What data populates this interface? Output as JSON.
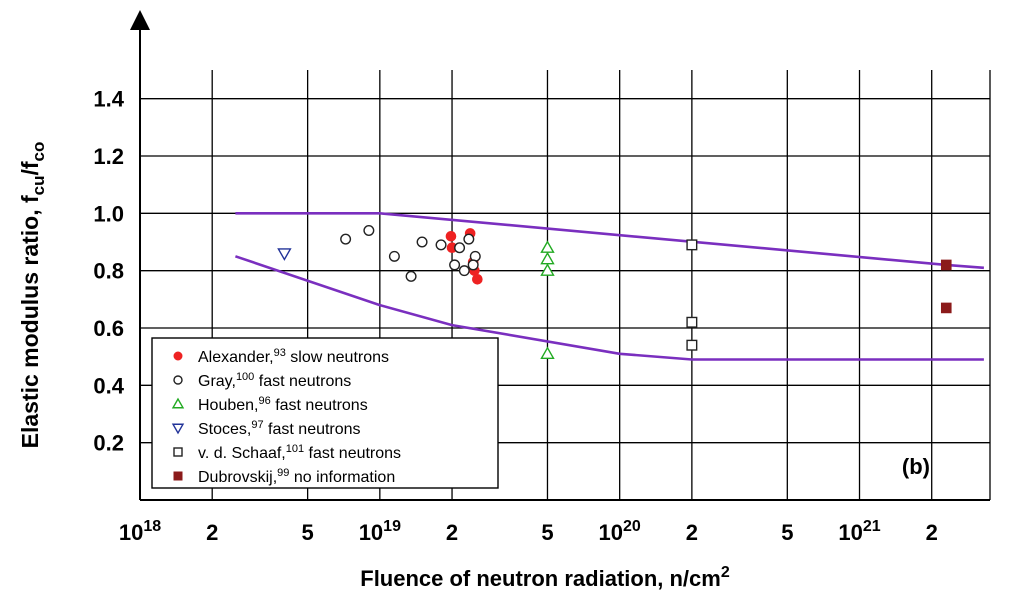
{
  "chart_data": {
    "type": "scatter",
    "panel_label": "(b)",
    "ylabel": {
      "main": "Elastic modulus ratio, f",
      "sub1": "cu",
      "mid": "/f",
      "sub2": "co"
    },
    "xlabel": {
      "main": "Fluence of neutron radiation, n/cm",
      "sup": "2"
    },
    "x_scale": "log",
    "xlim": [
      1e+18,
      3.5e+21
    ],
    "ylim": [
      0.0,
      1.5
    ],
    "grid": true,
    "legend_position": "bottom-left",
    "y_ticks": [
      {
        "value": 0.2,
        "label": "0.2"
      },
      {
        "value": 0.4,
        "label": "0.4"
      },
      {
        "value": 0.6,
        "label": "0.6"
      },
      {
        "value": 0.8,
        "label": "0.8"
      },
      {
        "value": 1.0,
        "label": "1.0"
      },
      {
        "value": 1.2,
        "label": "1.2"
      },
      {
        "value": 1.4,
        "label": "1.4"
      }
    ],
    "x_grid": [
      2e+18,
      5e+18,
      1e+19,
      2e+19,
      5e+19,
      1e+20,
      2e+20,
      5e+20,
      1e+21,
      2e+21
    ],
    "x_ticks": [
      {
        "value": 1e+18,
        "base": "10",
        "exp": "18"
      },
      {
        "value": 2e+18,
        "base": "2",
        "exp": ""
      },
      {
        "value": 5e+18,
        "base": "5",
        "exp": ""
      },
      {
        "value": 1e+19,
        "base": "10",
        "exp": "19"
      },
      {
        "value": 2e+19,
        "base": "2",
        "exp": ""
      },
      {
        "value": 5e+19,
        "base": "5",
        "exp": ""
      },
      {
        "value": 1e+20,
        "base": "10",
        "exp": "20"
      },
      {
        "value": 2e+20,
        "base": "2",
        "exp": ""
      },
      {
        "value": 5e+20,
        "base": "5",
        "exp": ""
      },
      {
        "value": 1e+21,
        "base": "10",
        "exp": "21"
      },
      {
        "value": 2e+21,
        "base": "2",
        "exp": ""
      }
    ],
    "bounds": [
      {
        "color": "#7a2fbf",
        "points": [
          [
            2.5e+18,
            1.0
          ],
          [
            1e+19,
            1.0
          ],
          [
            2.3e+21,
            0.82
          ],
          [
            3.3e+21,
            0.81
          ]
        ]
      },
      {
        "color": "#7a2fbf",
        "points": [
          [
            2.5e+18,
            0.85
          ],
          [
            1e+19,
            0.68
          ],
          [
            2e+19,
            0.61
          ],
          [
            1e+20,
            0.51
          ],
          [
            2e+20,
            0.49
          ],
          [
            3.3e+21,
            0.49
          ]
        ]
      }
    ],
    "series": [
      {
        "name": "Alexander,",
        "ref": "93",
        "suffix": " slow neutrons",
        "marker": "filled-circle",
        "color": "#ee2222",
        "points": [
          [
            1.98e+19,
            0.92
          ],
          [
            2e+19,
            0.88
          ],
          [
            2.38e+19,
            0.93
          ],
          [
            2.45e+19,
            0.83
          ],
          [
            2.48e+19,
            0.8
          ],
          [
            2.55e+19,
            0.77
          ]
        ]
      },
      {
        "name": "Gray,",
        "ref": "100",
        "suffix": " fast neutrons",
        "marker": "open-circle",
        "color": "#222222",
        "points": [
          [
            7.2e+18,
            0.91
          ],
          [
            9e+18,
            0.94
          ],
          [
            1.15e+19,
            0.85
          ],
          [
            1.35e+19,
            0.78
          ],
          [
            1.5e+19,
            0.9
          ],
          [
            1.8e+19,
            0.89
          ],
          [
            2.05e+19,
            0.82
          ],
          [
            2.15e+19,
            0.88
          ],
          [
            2.25e+19,
            0.8
          ],
          [
            2.35e+19,
            0.91
          ],
          [
            2.5e+19,
            0.85
          ],
          [
            2.45e+19,
            0.82
          ]
        ]
      },
      {
        "name": "Houben,",
        "ref": "96",
        "suffix": " fast neutrons",
        "marker": "open-triangle-up",
        "color": "#22aa22",
        "points": [
          [
            5e+19,
            0.88
          ],
          [
            5e+19,
            0.84
          ],
          [
            5e+19,
            0.8
          ],
          [
            5e+19,
            0.51
          ]
        ]
      },
      {
        "name": "Stoces,",
        "ref": "97",
        "suffix": " fast neutrons",
        "marker": "open-triangle-down",
        "color": "#223399",
        "points": [
          [
            4e+18,
            0.86
          ]
        ]
      },
      {
        "name": "v. d. Schaaf,",
        "ref": "101",
        "suffix": " fast neutrons",
        "marker": "open-square",
        "color": "#222222",
        "points": [
          [
            2e+20,
            0.89
          ],
          [
            2e+20,
            0.62
          ],
          [
            2e+20,
            0.54
          ]
        ]
      },
      {
        "name": "Dubrovskij,",
        "ref": "99",
        "suffix": " no information",
        "marker": "filled-square",
        "color": "#8b1a1a",
        "points": [
          [
            2.3e+21,
            0.82
          ],
          [
            2.3e+21,
            0.67
          ]
        ]
      }
    ]
  }
}
